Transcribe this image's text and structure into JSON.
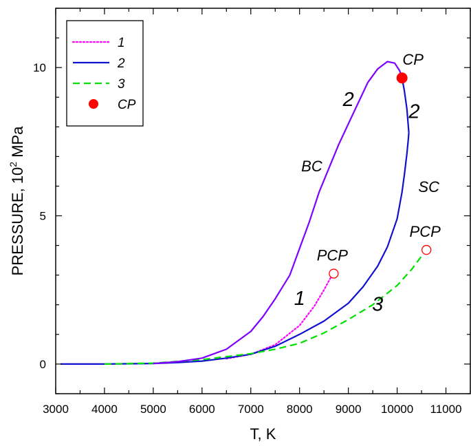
{
  "chart_data": {
    "type": "line",
    "xlabel": "T, K",
    "ylabel_prefix": "PRESSURE, 10",
    "ylabel_sup": "2",
    "ylabel_suffix": " MPa",
    "xlim": [
      3000,
      11500
    ],
    "ylim": [
      -1,
      12
    ],
    "xticks": [
      3000,
      4000,
      5000,
      6000,
      7000,
      8000,
      9000,
      10000,
      11000
    ],
    "yticks": [
      0,
      5,
      10
    ],
    "grid": false,
    "legend_position": "top-left",
    "series": [
      {
        "name": "1",
        "color": "#ff00ff",
        "style": "dotted",
        "x": [
          6500,
          7000,
          7500,
          8000,
          8300,
          8500,
          8650
        ],
        "y": [
          0.18,
          0.33,
          0.65,
          1.3,
          1.95,
          2.5,
          2.95
        ]
      },
      {
        "name": "2",
        "color": "#1010d0",
        "style": "solid",
        "x": [
          3100,
          4000,
          5000,
          5500,
          6000,
          6500,
          7000,
          7500,
          8000,
          8500,
          9000,
          9300,
          9600,
          9800,
          10000,
          10100,
          10150,
          10200,
          10230,
          10240
        ],
        "y": [
          0,
          0,
          0.02,
          0.05,
          0.1,
          0.2,
          0.33,
          0.6,
          1.0,
          1.45,
          2.05,
          2.6,
          3.3,
          3.95,
          4.9,
          5.8,
          6.4,
          7.1,
          7.6,
          7.8
        ]
      },
      {
        "name": "3",
        "color": "#00e000",
        "style": "dashed",
        "x": [
          4000,
          5000,
          6000,
          6500,
          7000,
          7500,
          8000,
          8500,
          9000,
          9500,
          10000,
          10300,
          10550
        ],
        "y": [
          0,
          0.03,
          0.15,
          0.25,
          0.35,
          0.5,
          0.7,
          1.05,
          1.5,
          2.0,
          2.65,
          3.2,
          3.75
        ]
      },
      {
        "name": "",
        "color": "#7f00ff",
        "style": "solid",
        "x": [
          5000,
          5500,
          6000,
          6500,
          7000,
          7250,
          7500,
          7800,
          8000,
          8200,
          8400,
          8600,
          8800,
          9000,
          9200,
          9400,
          9600,
          9800,
          9950,
          10050,
          10100
        ],
        "y": [
          0.02,
          0.08,
          0.2,
          0.5,
          1.1,
          1.6,
          2.2,
          3.0,
          3.9,
          4.8,
          5.8,
          6.6,
          7.4,
          8.1,
          8.8,
          9.5,
          9.95,
          10.2,
          10.15,
          9.9,
          9.65
        ]
      },
      {
        "name": "",
        "color": "#1010d0",
        "style": "solid",
        "x": [
          10100,
          10150,
          10200,
          10240
        ],
        "y": [
          9.65,
          9.2,
          8.6,
          7.8
        ]
      }
    ],
    "points": [
      {
        "name": "CP",
        "x": 10100,
        "y": 9.65,
        "color": "#ff0000",
        "filled": true,
        "label": "CP"
      },
      {
        "name": "PCP-1",
        "x": 8700,
        "y": 3.05,
        "color": "#ff0000",
        "filled": false,
        "label": "PCP"
      },
      {
        "name": "PCP-3",
        "x": 10600,
        "y": 3.85,
        "color": "#ff0000",
        "filled": false,
        "label": "PCP"
      }
    ],
    "annotations": [
      {
        "text": "2",
        "x": 9000,
        "y": 8.7
      },
      {
        "text": "2",
        "x": 10350,
        "y": 8.3
      },
      {
        "text": "BC",
        "x": 8250,
        "y": 6.5
      },
      {
        "text": "SC",
        "x": 10650,
        "y": 5.8
      },
      {
        "text": "1",
        "x": 8000,
        "y": 2.0
      },
      {
        "text": "3",
        "x": 9600,
        "y": 1.8
      }
    ],
    "legend": [
      {
        "label": "1",
        "color": "#ff00ff",
        "style": "dotted"
      },
      {
        "label": "2",
        "color": "#1010d0",
        "style": "solid"
      },
      {
        "label": "3",
        "color": "#00e000",
        "style": "dashed"
      },
      {
        "label": "CP",
        "color": "#ff0000",
        "style": "point"
      }
    ]
  }
}
